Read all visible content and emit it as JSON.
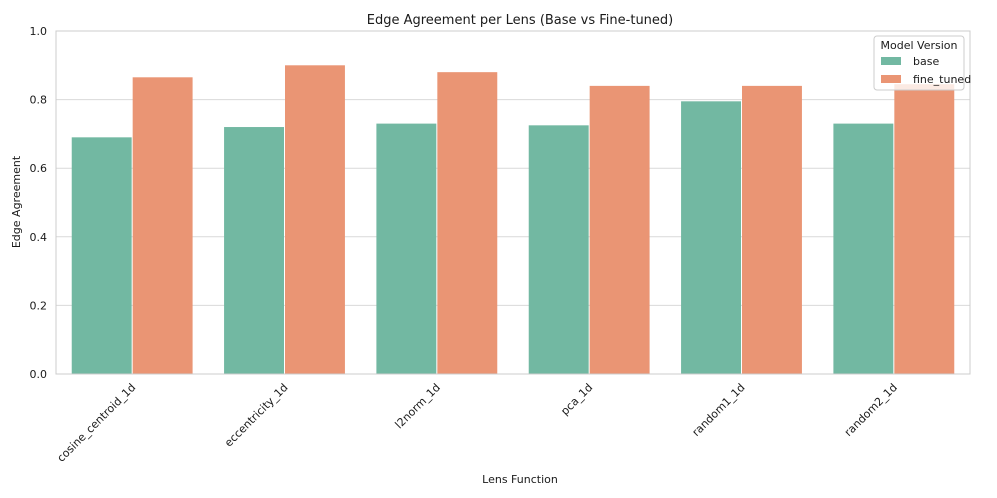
{
  "chart_data": {
    "type": "bar",
    "title": "Edge Agreement per Lens (Base vs Fine-tuned)",
    "xlabel": "Lens Function",
    "ylabel": "Edge Agreement",
    "categories": [
      "cosine_centroid_1d",
      "eccentricity_1d",
      "l2norm_1d",
      "pca_1d",
      "random1_1d",
      "random2_1d"
    ],
    "series": [
      {
        "name": "base",
        "color": "#72b8a2",
        "values": [
          0.69,
          0.72,
          0.73,
          0.725,
          0.795,
          0.73
        ]
      },
      {
        "name": "fine_tuned",
        "color": "#ea9574",
        "values": [
          0.865,
          0.9,
          0.88,
          0.84,
          0.84,
          0.845
        ]
      }
    ],
    "ylim": [
      0,
      1.0
    ],
    "yticks": [
      "0.0",
      "0.2",
      "0.4",
      "0.6",
      "0.8",
      "1.0"
    ],
    "grid": "horizontal",
    "legend": {
      "title": "Model Version",
      "placement": "top-right"
    }
  }
}
